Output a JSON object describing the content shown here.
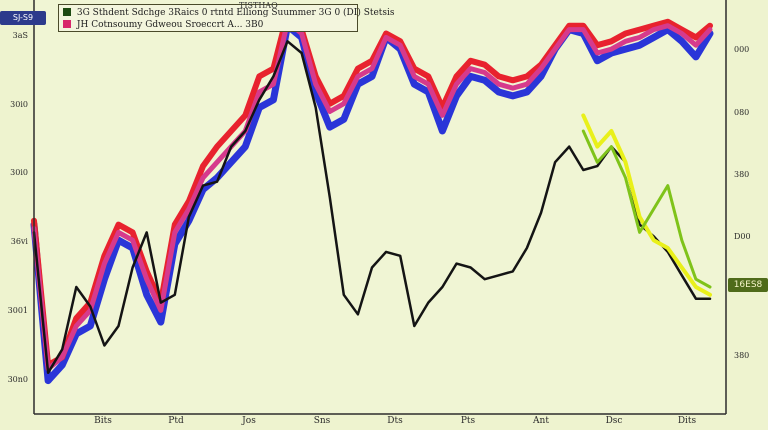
{
  "legend": {
    "header": "TISTHAO",
    "row1_text": "3G Sthdent Sdchge 3Raics 0 rtntd Elliong Suummer 3G 0 (DI) Stetsis",
    "row2_text": "JH Cotnsoumy Gdweou Sroeccrt A... 3B0",
    "row1_color": "#1d4a12",
    "row2_color": "#d8276b"
  },
  "badges": {
    "left": "SJ-S9",
    "right": "16ES8"
  },
  "colors": {
    "background": "#eef3cf",
    "axis": "#2d2d2d",
    "red": "#e8222e",
    "blue": "#2a35d8",
    "magenta": "#d63a8c",
    "black": "#141414",
    "yellow": "#e9f01a",
    "green": "#7fc31a"
  },
  "chart_data": {
    "type": "line",
    "x_tick_labels": [
      "Bits",
      "Ptd",
      "Jos",
      "Sns",
      "Dts",
      "Pts",
      "Ant",
      "Dsc",
      "Dits"
    ],
    "y_tick_labels_left": [
      "3aS",
      "30i0",
      "30i0",
      "36vi",
      "3001",
      "30n0"
    ],
    "y_tick_labels_right": [
      "000",
      "080",
      "380",
      "D00",
      "",
      "380"
    ],
    "ylim": [
      0,
      100
    ],
    "x_count": 49,
    "series": [
      {
        "color": "#2a35d8",
        "values": [
          46,
          6,
          10,
          18,
          20,
          32,
          42,
          40,
          28,
          21,
          41,
          47,
          55,
          58,
          62,
          66,
          76,
          78,
          97,
          94,
          80,
          71,
          73,
          82,
          84,
          94,
          91,
          82,
          80,
          70,
          79,
          84,
          83,
          80,
          79,
          80,
          84,
          91,
          96,
          95,
          88,
          90,
          91,
          92,
          94,
          96,
          93,
          89,
          95
        ]
      },
      {
        "color": "#e8222e",
        "values": [
          47,
          10,
          12,
          22,
          26,
          38,
          46,
          44,
          34,
          26,
          46,
          52,
          61,
          66,
          70,
          74,
          84,
          86,
          100,
          96,
          84,
          77,
          79,
          86,
          88,
          95,
          93,
          86,
          84,
          76,
          84,
          88,
          87,
          84,
          83,
          84,
          87,
          92,
          97,
          97,
          92,
          93,
          95,
          96,
          97,
          98,
          96,
          94,
          97
        ]
      },
      {
        "color": "#d63a8c",
        "values": [
          45,
          9,
          12,
          20,
          24,
          36,
          44,
          42,
          32,
          24,
          44,
          50,
          58,
          62,
          66,
          70,
          80,
          82,
          98,
          95,
          82,
          75,
          77,
          84,
          86,
          94,
          92,
          84,
          82,
          74,
          82,
          86,
          85,
          82,
          81,
          82,
          86,
          91,
          96,
          96,
          90,
          91,
          93,
          94,
          96,
          97,
          95,
          92,
          96
        ]
      },
      {
        "color": "#141414",
        "values": [
          44,
          8,
          14,
          30,
          25,
          15,
          20,
          35,
          44,
          26,
          28,
          48,
          56,
          57,
          66,
          70,
          78,
          84,
          93,
          90,
          76,
          53,
          28,
          23,
          35,
          39,
          38,
          20,
          26,
          30,
          36,
          35,
          32,
          33,
          34,
          40,
          49,
          62,
          66,
          60,
          61,
          66,
          62,
          46,
          43,
          39,
          33,
          27,
          27
        ]
      },
      {
        "color": "#e9f01a",
        "values": [
          null,
          null,
          null,
          null,
          null,
          null,
          null,
          null,
          null,
          null,
          null,
          null,
          null,
          null,
          null,
          null,
          null,
          null,
          null,
          null,
          null,
          null,
          null,
          null,
          null,
          null,
          null,
          null,
          null,
          null,
          null,
          null,
          null,
          null,
          null,
          null,
          null,
          null,
          null,
          74,
          66,
          70,
          62,
          48,
          42,
          40,
          35,
          30,
          28
        ]
      },
      {
        "color": "#7fc31a",
        "values": [
          null,
          null,
          null,
          null,
          null,
          null,
          null,
          null,
          null,
          null,
          null,
          null,
          null,
          null,
          null,
          null,
          null,
          null,
          null,
          null,
          null,
          null,
          null,
          null,
          null,
          null,
          null,
          null,
          null,
          null,
          null,
          null,
          null,
          null,
          null,
          null,
          null,
          null,
          null,
          70,
          62,
          66,
          58,
          44,
          50,
          56,
          42,
          32,
          30
        ]
      }
    ]
  }
}
